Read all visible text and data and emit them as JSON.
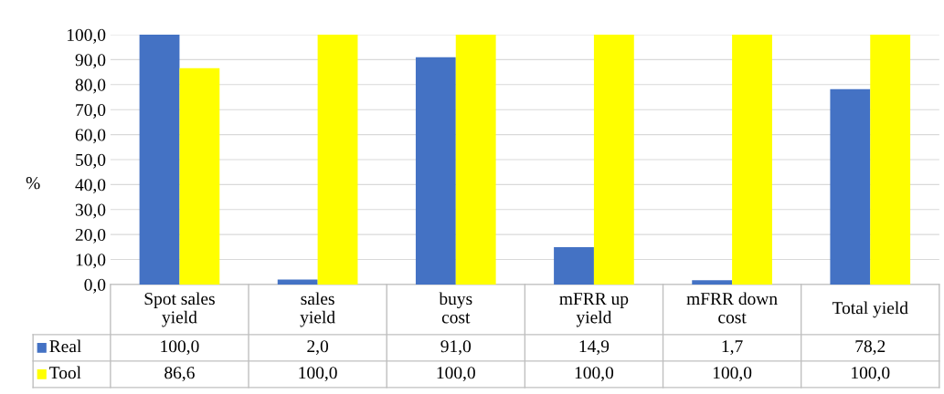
{
  "chart_data": {
    "type": "bar",
    "ylabel": "%",
    "categories": [
      "Spot sales\nyield",
      "sales\nyield",
      "buys\ncost",
      "mFRR up\nyield",
      "mFRR down\ncost",
      "Total yield"
    ],
    "series": [
      {
        "name": "Real",
        "color": "#4472c4",
        "values": [
          100.0,
          2.0,
          91.0,
          14.9,
          1.7,
          78.2
        ],
        "value_labels": [
          "100,0",
          "2,0",
          "91,0",
          "14,9",
          "1,7",
          "78,2"
        ]
      },
      {
        "name": "Tool",
        "color": "#ffff00",
        "values": [
          86.6,
          100.0,
          100.0,
          100.0,
          100.0,
          100.0
        ],
        "value_labels": [
          "86,6",
          "100,0",
          "100,0",
          "100,0",
          "100,0",
          "100,0"
        ]
      }
    ],
    "ylim": [
      0,
      100
    ],
    "yticks": [
      {
        "value": 0,
        "label": "0,0"
      },
      {
        "value": 10,
        "label": "10,0"
      },
      {
        "value": 20,
        "label": "20,0"
      },
      {
        "value": 30,
        "label": "30,0"
      },
      {
        "value": 40,
        "label": "40,0"
      },
      {
        "value": 50,
        "label": "50,0"
      },
      {
        "value": 60,
        "label": "60,0"
      },
      {
        "value": 70,
        "label": "70,0"
      },
      {
        "value": 80,
        "label": "80,0"
      },
      {
        "value": 90,
        "label": "90,0"
      },
      {
        "value": 100,
        "label": "100,0"
      }
    ],
    "grid": "y",
    "legend": "bottom"
  }
}
